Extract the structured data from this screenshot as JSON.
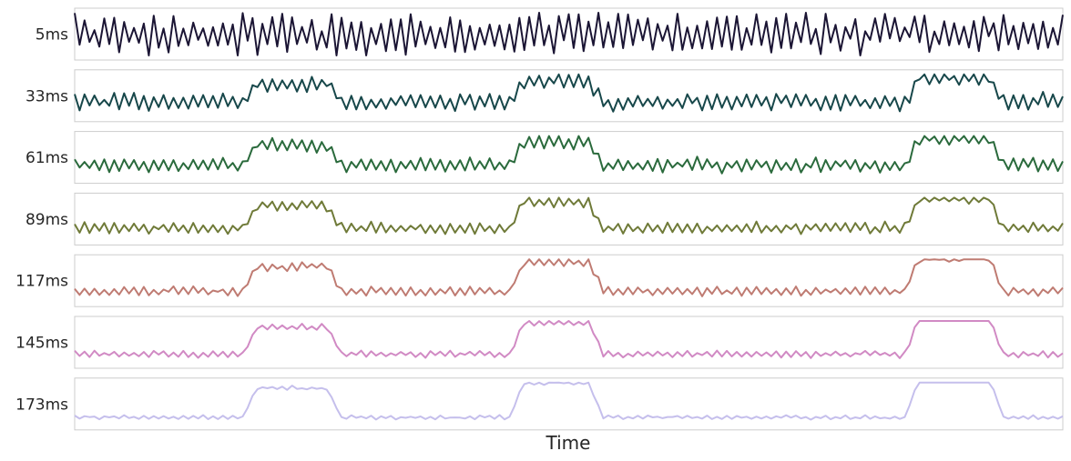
{
  "chart_data": {
    "type": "line",
    "xlabel": "Time",
    "grid": false,
    "legend": "none",
    "x": {
      "start": 0,
      "end": 200,
      "count": 201
    },
    "series": [
      {
        "name": "5ms",
        "window": 5,
        "color": "#1b1534",
        "offset": 0.5,
        "noise": 0.08
      },
      {
        "name": "33ms",
        "window": 33,
        "color": "#17474a",
        "offset": 0.55,
        "noise": 0.06
      },
      {
        "name": "61ms",
        "window": 61,
        "color": "#2a6a3c",
        "offset": 0.6,
        "noise": 0.05
      },
      {
        "name": "89ms",
        "window": 89,
        "color": "#6f7a38",
        "offset": 0.6,
        "noise": 0.04
      },
      {
        "name": "117ms",
        "window": 117,
        "color": "#bf7b72",
        "offset": 0.62,
        "noise": 0.035
      },
      {
        "name": "145ms",
        "window": 145,
        "color": "#d18ac4",
        "offset": 0.63,
        "noise": 0.03
      },
      {
        "name": "173ms",
        "window": 173,
        "color": "#c5bfec",
        "offset": 0.64,
        "noise": 0.025
      }
    ],
    "bursts": [
      {
        "start": 37,
        "end": 51,
        "amplitude": 0.55
      },
      {
        "start": 91,
        "end": 104,
        "amplitude": 0.65
      },
      {
        "start": 171,
        "end": 185,
        "amplitude": 0.75
      }
    ],
    "oscillation": {
      "period": 2,
      "amplitude": 0.5
    },
    "ylim": [
      0,
      1
    ]
  }
}
